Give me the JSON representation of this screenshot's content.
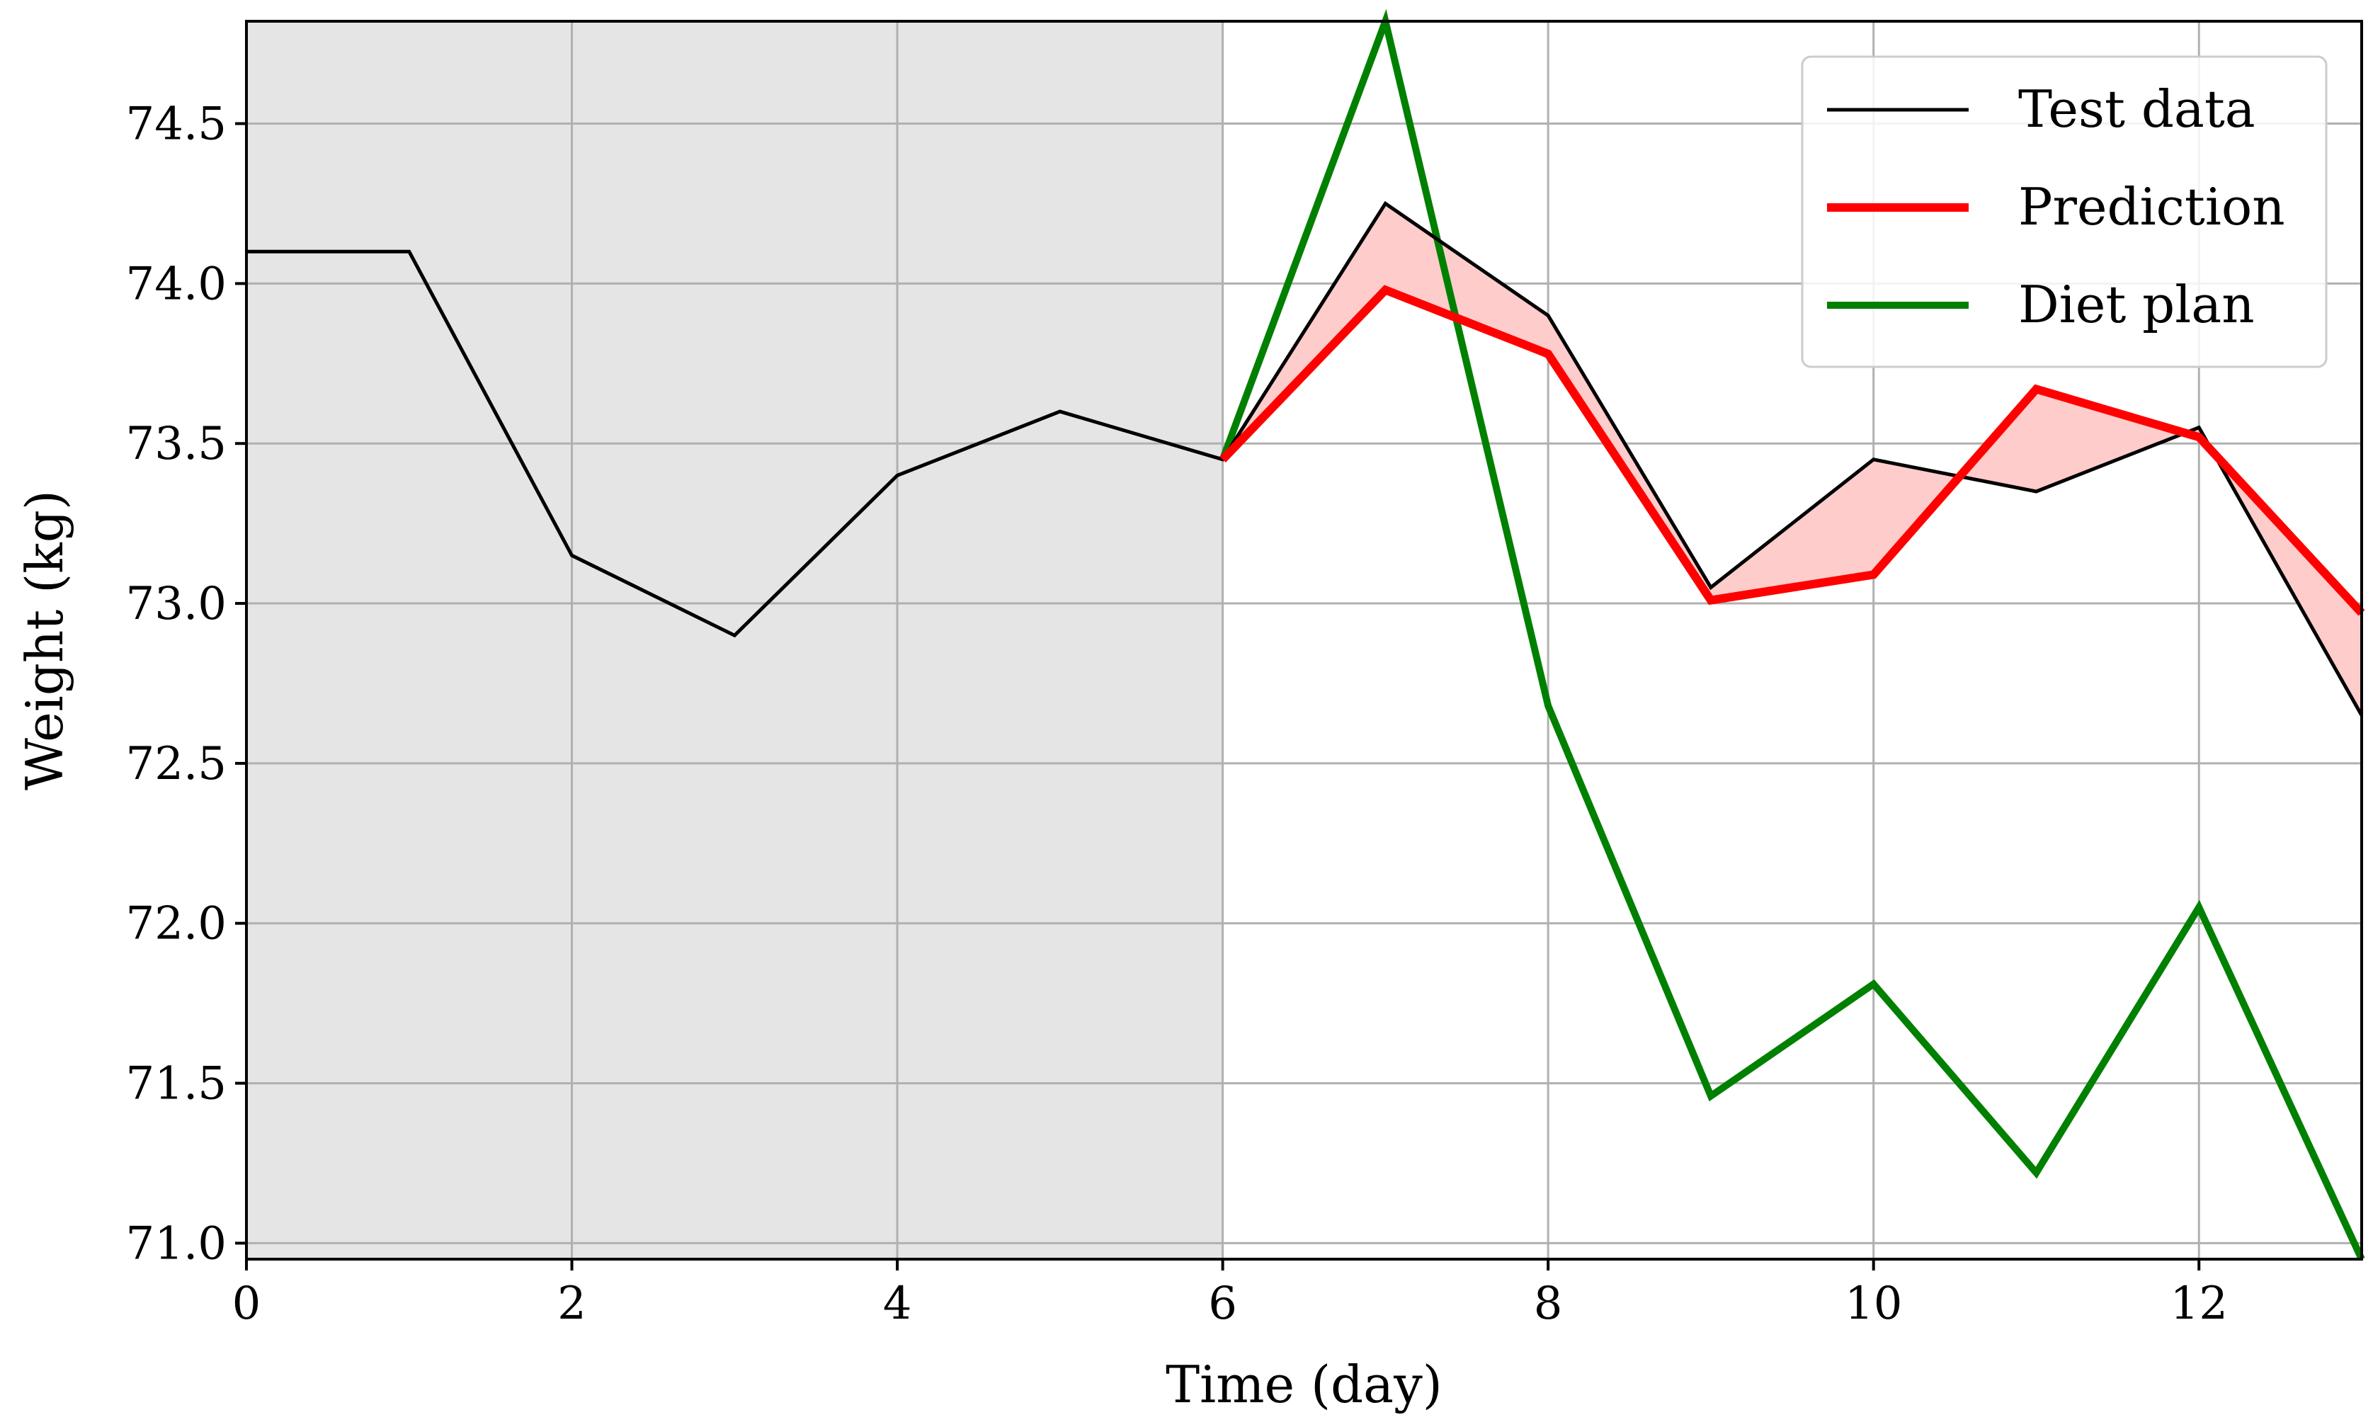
{
  "chart_data": {
    "type": "line",
    "title": "",
    "xlabel": "Time (day)",
    "ylabel": "Weight (kg)",
    "xlim": [
      0,
      13
    ],
    "ylim": [
      70.95,
      74.82
    ],
    "xticks": [
      0,
      2,
      4,
      6,
      8,
      10,
      12
    ],
    "yticks": [
      71.0,
      71.5,
      72.0,
      72.5,
      73.0,
      73.5,
      74.0,
      74.5
    ],
    "grid": true,
    "legend_position": "top-right",
    "shaded_region": {
      "x_from": 0,
      "x_to": 6,
      "color": "#e5e5e5"
    },
    "fill_between": {
      "between": [
        "Test data",
        "Prediction"
      ],
      "color": "#ffcccc"
    },
    "series": [
      {
        "name": "Test data",
        "color": "#000000",
        "x": [
          0,
          1,
          2,
          3,
          4,
          5,
          6,
          7,
          8,
          9,
          10,
          11,
          12,
          13
        ],
        "values": [
          74.1,
          74.1,
          73.15,
          72.9,
          73.4,
          73.6,
          73.45,
          74.25,
          73.9,
          73.05,
          73.45,
          73.35,
          73.55,
          72.65
        ]
      },
      {
        "name": "Prediction",
        "color": "#ff0000",
        "x": [
          6,
          7,
          8,
          9,
          10,
          11,
          12,
          13
        ],
        "values": [
          73.45,
          73.98,
          73.78,
          73.01,
          73.09,
          73.67,
          73.52,
          72.97
        ]
      },
      {
        "name": "Diet plan",
        "color": "#008000",
        "x": [
          6,
          7,
          8,
          9,
          10,
          11,
          12,
          13
        ],
        "values": [
          73.45,
          74.82,
          72.68,
          71.46,
          71.81,
          71.22,
          72.05,
          70.95
        ]
      }
    ]
  }
}
